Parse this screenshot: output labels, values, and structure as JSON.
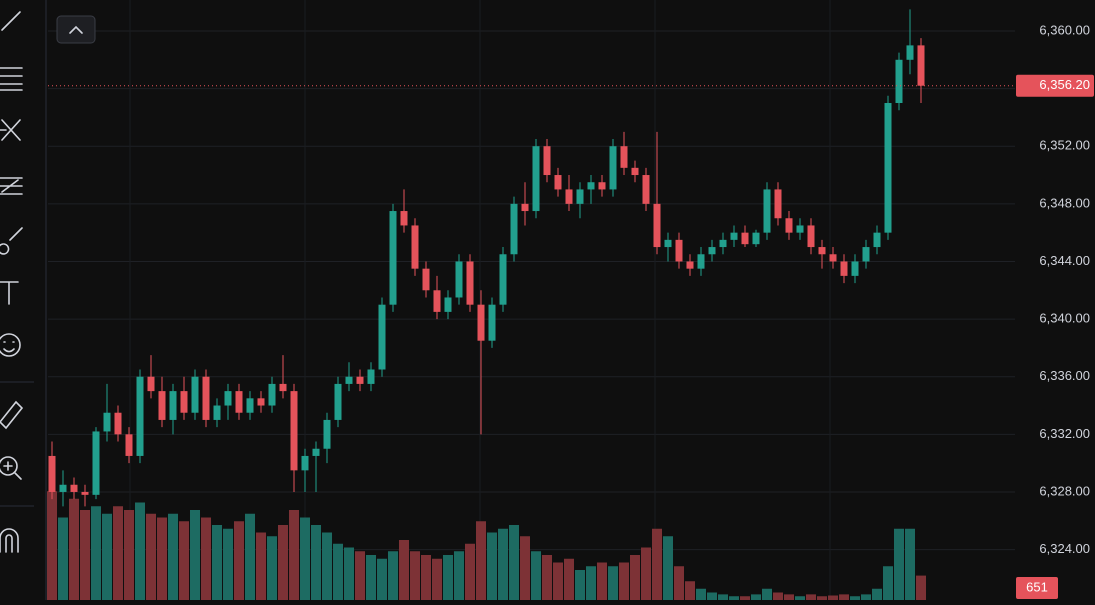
{
  "chart_data": {
    "type": "candlestick",
    "ylim": [
      6320.5,
      6362.15
    ],
    "yticks": [
      {
        "value": 6324,
        "label": "6,324.00"
      },
      {
        "value": 6328,
        "label": "6,328.00"
      },
      {
        "value": 6332,
        "label": "6,332.00"
      },
      {
        "value": 6336,
        "label": "6,336.00"
      },
      {
        "value": 6340,
        "label": "6,340.00"
      },
      {
        "value": 6344,
        "label": "6,344.00"
      },
      {
        "value": 6348,
        "label": "6,348.00"
      },
      {
        "value": 6352,
        "label": "6,352.00"
      },
      {
        "value": 6356,
        "label": "6,356.00"
      },
      {
        "value": 6360,
        "label": "6,360.00"
      }
    ],
    "grid": true,
    "up_color": "#22a08e",
    "down_color": "#e5535b",
    "volume_up_color": "#1d6b62",
    "volume_down_color": "#7d3236",
    "last_price": {
      "value": 6356.2,
      "label": "6,356.20"
    },
    "volume_ylim": [
      0,
      16000
    ],
    "ohlc": [
      [
        6330.5,
        6331.5,
        6327.5,
        6328
      ],
      [
        6328,
        6329.5,
        6327,
        6328.5
      ],
      [
        6328.5,
        6329,
        6327.5,
        6328
      ],
      [
        6328,
        6328.5,
        6327,
        6327.8
      ],
      [
        6327.8,
        6332.5,
        6327.5,
        6332.2
      ],
      [
        6332.2,
        6335.5,
        6331.5,
        6333.5
      ],
      [
        6333.5,
        6334,
        6331.5,
        6332
      ],
      [
        6332,
        6332.5,
        6330,
        6330.5
      ],
      [
        6330.5,
        6336.5,
        6330,
        6336
      ],
      [
        6336,
        6337.5,
        6334.5,
        6335
      ],
      [
        6335,
        6336,
        6332.5,
        6333
      ],
      [
        6333,
        6335.5,
        6332,
        6335
      ],
      [
        6335,
        6336,
        6333,
        6333.5
      ],
      [
        6333.5,
        6336.5,
        6333,
        6336
      ],
      [
        6336,
        6336.5,
        6332.5,
        6333
      ],
      [
        6333,
        6334.5,
        6332.5,
        6334
      ],
      [
        6334,
        6335.5,
        6333,
        6335
      ],
      [
        6335,
        6335.5,
        6333,
        6333.5
      ],
      [
        6333.5,
        6335,
        6333,
        6334.5
      ],
      [
        6334.5,
        6335,
        6333.5,
        6334
      ],
      [
        6334,
        6336,
        6333.5,
        6335.5
      ],
      [
        6335.5,
        6337.5,
        6334.5,
        6335
      ],
      [
        6335,
        6335.5,
        6328,
        6329.5
      ],
      [
        6329.5,
        6331,
        6328,
        6330.5
      ],
      [
        6330.5,
        6331.5,
        6328,
        6331
      ],
      [
        6331,
        6333.5,
        6330,
        6333
      ],
      [
        6333,
        6336,
        6332.5,
        6335.5
      ],
      [
        6335.5,
        6337,
        6335,
        6336
      ],
      [
        6336,
        6336.5,
        6335,
        6335.5
      ],
      [
        6335.5,
        6337,
        6335,
        6336.5
      ],
      [
        6336.5,
        6341.5,
        6336,
        6341
      ],
      [
        6341,
        6348,
        6340.5,
        6347.5
      ],
      [
        6347.5,
        6349,
        6346,
        6346.5
      ],
      [
        6346.5,
        6347,
        6343,
        6343.5
      ],
      [
        6343.5,
        6344,
        6341.5,
        6342
      ],
      [
        6342,
        6343,
        6340,
        6340.5
      ],
      [
        6340.5,
        6342,
        6340,
        6341.5
      ],
      [
        6341.5,
        6344.5,
        6341,
        6344
      ],
      [
        6344,
        6344.5,
        6340.5,
        6341
      ],
      [
        6341,
        6342,
        6332,
        6338.5
      ],
      [
        6338.5,
        6341.5,
        6338,
        6341
      ],
      [
        6341,
        6345,
        6340.5,
        6344.5
      ],
      [
        6344.5,
        6348.5,
        6344,
        6348
      ],
      [
        6348,
        6349.5,
        6346.5,
        6347.5
      ],
      [
        6347.5,
        6352.5,
        6347,
        6352
      ],
      [
        6352,
        6352.5,
        6349.5,
        6350
      ],
      [
        6350,
        6350.5,
        6348.5,
        6349
      ],
      [
        6349,
        6350,
        6347.5,
        6348
      ],
      [
        6348,
        6349.5,
        6347,
        6349
      ],
      [
        6349,
        6350,
        6348,
        6349.5
      ],
      [
        6349.5,
        6350,
        6348.5,
        6349
      ],
      [
        6349,
        6352.5,
        6348.5,
        6352
      ],
      [
        6352,
        6353,
        6350,
        6350.5
      ],
      [
        6350.5,
        6351,
        6349.5,
        6350
      ],
      [
        6350,
        6350.5,
        6347.5,
        6348
      ],
      [
        6348,
        6353,
        6344.5,
        6345
      ],
      [
        6345,
        6346,
        6344,
        6345.5
      ],
      [
        6345.5,
        6346,
        6343.5,
        6344
      ],
      [
        6344,
        6344.5,
        6343,
        6343.5
      ],
      [
        6343.5,
        6345,
        6343,
        6344.5
      ],
      [
        6344.5,
        6345.5,
        6344,
        6345
      ],
      [
        6345,
        6346,
        6344.5,
        6345.5
      ],
      [
        6345.5,
        6346.5,
        6345,
        6346
      ],
      [
        6346,
        6346.5,
        6345,
        6345.2
      ],
      [
        6345.2,
        6346.2,
        6345,
        6346
      ],
      [
        6346,
        6349.5,
        6345.5,
        6349
      ],
      [
        6349,
        6349.5,
        6346.5,
        6347
      ],
      [
        6347,
        6347.5,
        6345.5,
        6346
      ],
      [
        6346,
        6347,
        6345.5,
        6346.5
      ],
      [
        6346.5,
        6347,
        6344.5,
        6345
      ],
      [
        6345,
        6345.5,
        6343.5,
        6344.5
      ],
      [
        6344.5,
        6345,
        6343.5,
        6344
      ],
      [
        6344,
        6344.5,
        6342.5,
        6343
      ],
      [
        6343,
        6344.5,
        6342.5,
        6344
      ],
      [
        6344,
        6345.5,
        6343.5,
        6345
      ],
      [
        6345,
        6346.5,
        6344.5,
        6346
      ],
      [
        6346,
        6355.5,
        6345.5,
        6355
      ],
      [
        6355,
        6358.5,
        6354.5,
        6358
      ],
      [
        6358,
        6361.5,
        6357,
        6359
      ],
      [
        6359,
        6359.5,
        6355,
        6356.2
      ]
    ],
    "volume": [
      2900,
      2200,
      2700,
      2400,
      2500,
      2300,
      2500,
      2400,
      2600,
      2300,
      2200,
      2300,
      2100,
      2400,
      2200,
      2000,
      1900,
      2100,
      2300,
      1800,
      1700,
      2000,
      2400,
      2200,
      2000,
      1800,
      1500,
      1400,
      1300,
      1200,
      1100,
      1300,
      1600,
      1300,
      1200,
      1100,
      1200,
      1300,
      1500,
      2100,
      1800,
      1900,
      2000,
      1700,
      1300,
      1200,
      1000,
      1100,
      800,
      900,
      1000,
      900,
      1000,
      1200,
      1400,
      1900,
      1700,
      900,
      500,
      300,
      200,
      150,
      100,
      100,
      150,
      300,
      200,
      150,
      100,
      150,
      100,
      120,
      150,
      100,
      150,
      300,
      900,
      1900,
      1900,
      651
    ]
  }
}
